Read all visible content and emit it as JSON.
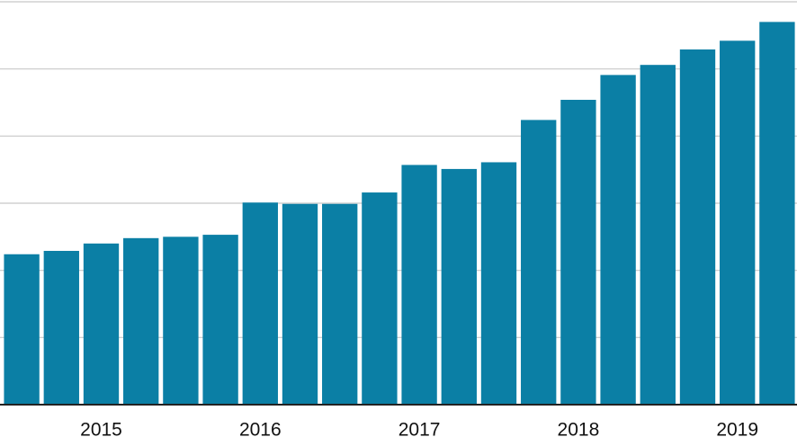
{
  "chart_data": {
    "type": "bar",
    "categories": [
      null,
      null,
      "2015",
      null,
      null,
      null,
      "2016",
      null,
      null,
      null,
      "2017",
      null,
      null,
      null,
      "2018",
      null,
      null,
      null,
      "2019",
      null
    ],
    "values": [
      2.24,
      2.29,
      2.4,
      2.48,
      2.5,
      2.53,
      3.01,
      2.99,
      2.99,
      3.16,
      3.57,
      3.51,
      3.61,
      4.24,
      4.54,
      4.91,
      5.06,
      5.29,
      5.42,
      5.7
    ],
    "color": "#0b7fa5",
    "ylim": [
      0,
      6
    ],
    "yticks": [
      0,
      1,
      2,
      3,
      4,
      5,
      6
    ],
    "grid": true
  }
}
